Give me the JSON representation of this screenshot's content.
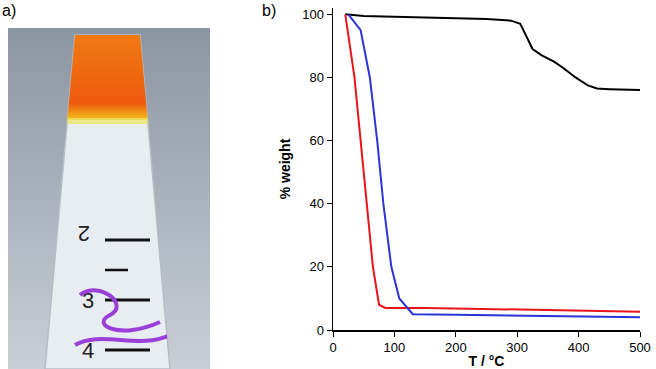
{
  "photo": {
    "panel_label": "a)",
    "tube_marks": [
      "2",
      "3",
      "4"
    ]
  },
  "chart_data": {
    "type": "line",
    "panel_label": "b)",
    "x_label": "T / °C",
    "y_label": "% weight",
    "xlim": [
      0,
      500
    ],
    "xticks": [
      0,
      100,
      200,
      300,
      400,
      500
    ],
    "ylim": [
      0,
      102
    ],
    "yticks": [
      0,
      20,
      40,
      60,
      80,
      100
    ],
    "grid": false,
    "series": [
      {
        "color": "#000000",
        "x": [
          20,
          50,
          150,
          250,
          290,
          305,
          315,
          325,
          340,
          360,
          375,
          395,
          415,
          430,
          450,
          500
        ],
        "values": [
          100,
          99.5,
          99,
          98.5,
          98,
          97,
          93,
          89,
          87,
          85,
          83,
          80,
          77.5,
          76.5,
          76.3,
          76
        ]
      },
      {
        "color": "#e8141c",
        "x": [
          20,
          35,
          45,
          55,
          65,
          75,
          85,
          150,
          300,
          400,
          500
        ],
        "values": [
          100,
          80,
          60,
          40,
          20,
          8,
          7,
          7,
          6.5,
          6,
          5.8
        ]
      },
      {
        "color": "#2a35d8",
        "x": [
          25,
          45,
          60,
          72,
          82,
          95,
          108,
          130,
          200,
          300,
          400,
          500
        ],
        "values": [
          100,
          95,
          80,
          60,
          40,
          20,
          10,
          5,
          4.8,
          4.5,
          4.2,
          4
        ]
      }
    ]
  }
}
